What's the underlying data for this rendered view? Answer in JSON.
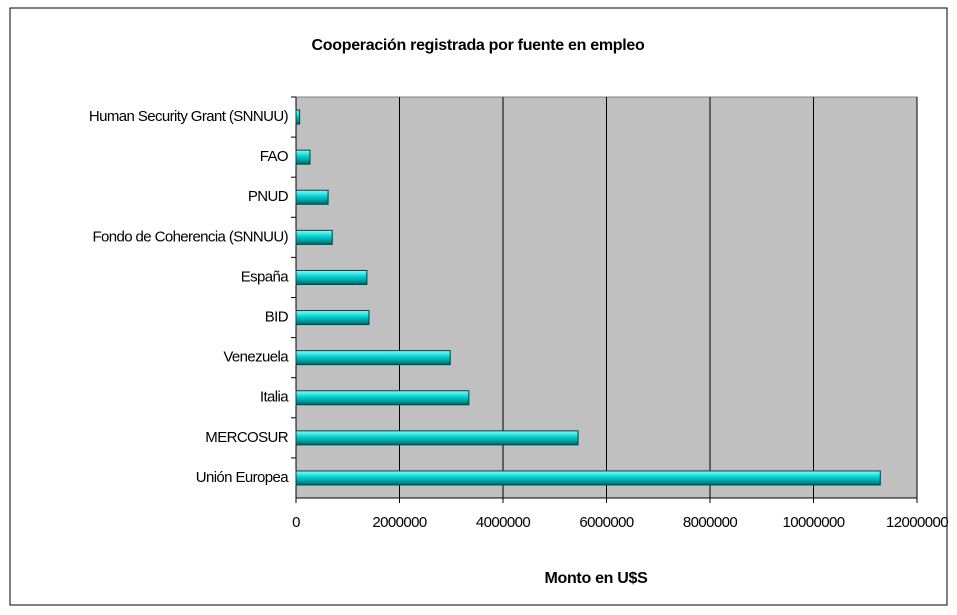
{
  "chart_data": {
    "type": "barh",
    "title": "Cooperación registrada por fuente en empleo",
    "xlabel": "Monto en U$S",
    "categories": [
      "Human Security Grant (SNNUU)",
      "FAO",
      "PNUD",
      "Fondo de Coherencia (SNNUU)",
      "España",
      "BID",
      "Venezuela",
      "Italia",
      "MERCOSUR",
      "Unión Europea"
    ],
    "values": [
      70000,
      270000,
      620000,
      700000,
      1370000,
      1410000,
      2980000,
      3340000,
      5450000,
      11290000
    ],
    "color": "#00c8c8",
    "xlim": [
      0,
      12000000
    ],
    "xticks": [
      0,
      2000000,
      4000000,
      6000000,
      8000000,
      10000000,
      12000000
    ],
    "grid": true
  }
}
